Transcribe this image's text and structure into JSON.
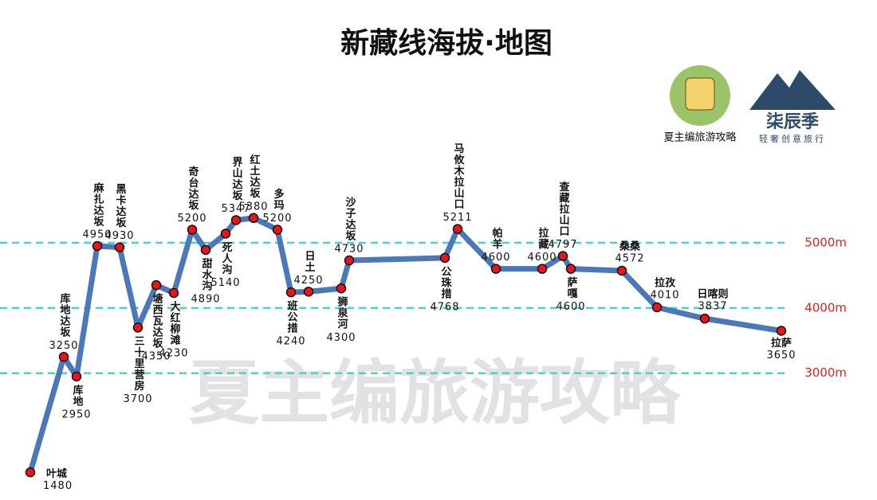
{
  "chart_data": {
    "type": "line",
    "title": "新藏线海拔·地图",
    "categories": [
      "叶城",
      "库地达坂",
      "库地",
      "麻扎达坂",
      "黑卡达坂",
      "三十里营房",
      "塘西瓦达坂",
      "大红柳滩",
      "奇台达坂",
      "甜水沟",
      "死人沟",
      "界山达坂",
      "红土达坂",
      "多玛",
      "班公措",
      "日土",
      "狮泉河",
      "沙子达坂",
      "公珠措",
      "马攸木拉山口",
      "帕羊",
      "拉藏",
      "查藏拉山口",
      "萨嘎",
      "桑桑",
      "拉孜",
      "日喀则",
      "拉萨"
    ],
    "values": [
      1480,
      3250,
      2950,
      4950,
      4930,
      3700,
      4350,
      4230,
      5200,
      4890,
      5140,
      5347,
      5380,
      5200,
      4240,
      4250,
      4300,
      4730,
      4768,
      5211,
      4600,
      4600,
      4797,
      4600,
      4572,
      4010,
      3837,
      3650
    ],
    "color": "#4a78b8",
    "ylim": [
      1300,
      6000
    ],
    "yticks": [
      {
        "value": 3000,
        "label": "3000m"
      },
      {
        "value": 4000,
        "label": "4000m"
      },
      {
        "value": 5000,
        "label": "5000m"
      }
    ],
    "grid": true,
    "logo_left": "夏主编旅游攻略",
    "logo_right": "柒辰季",
    "logo_right_sub": "轻奢创意旅行",
    "watermark": "夏主编旅游攻略"
  }
}
